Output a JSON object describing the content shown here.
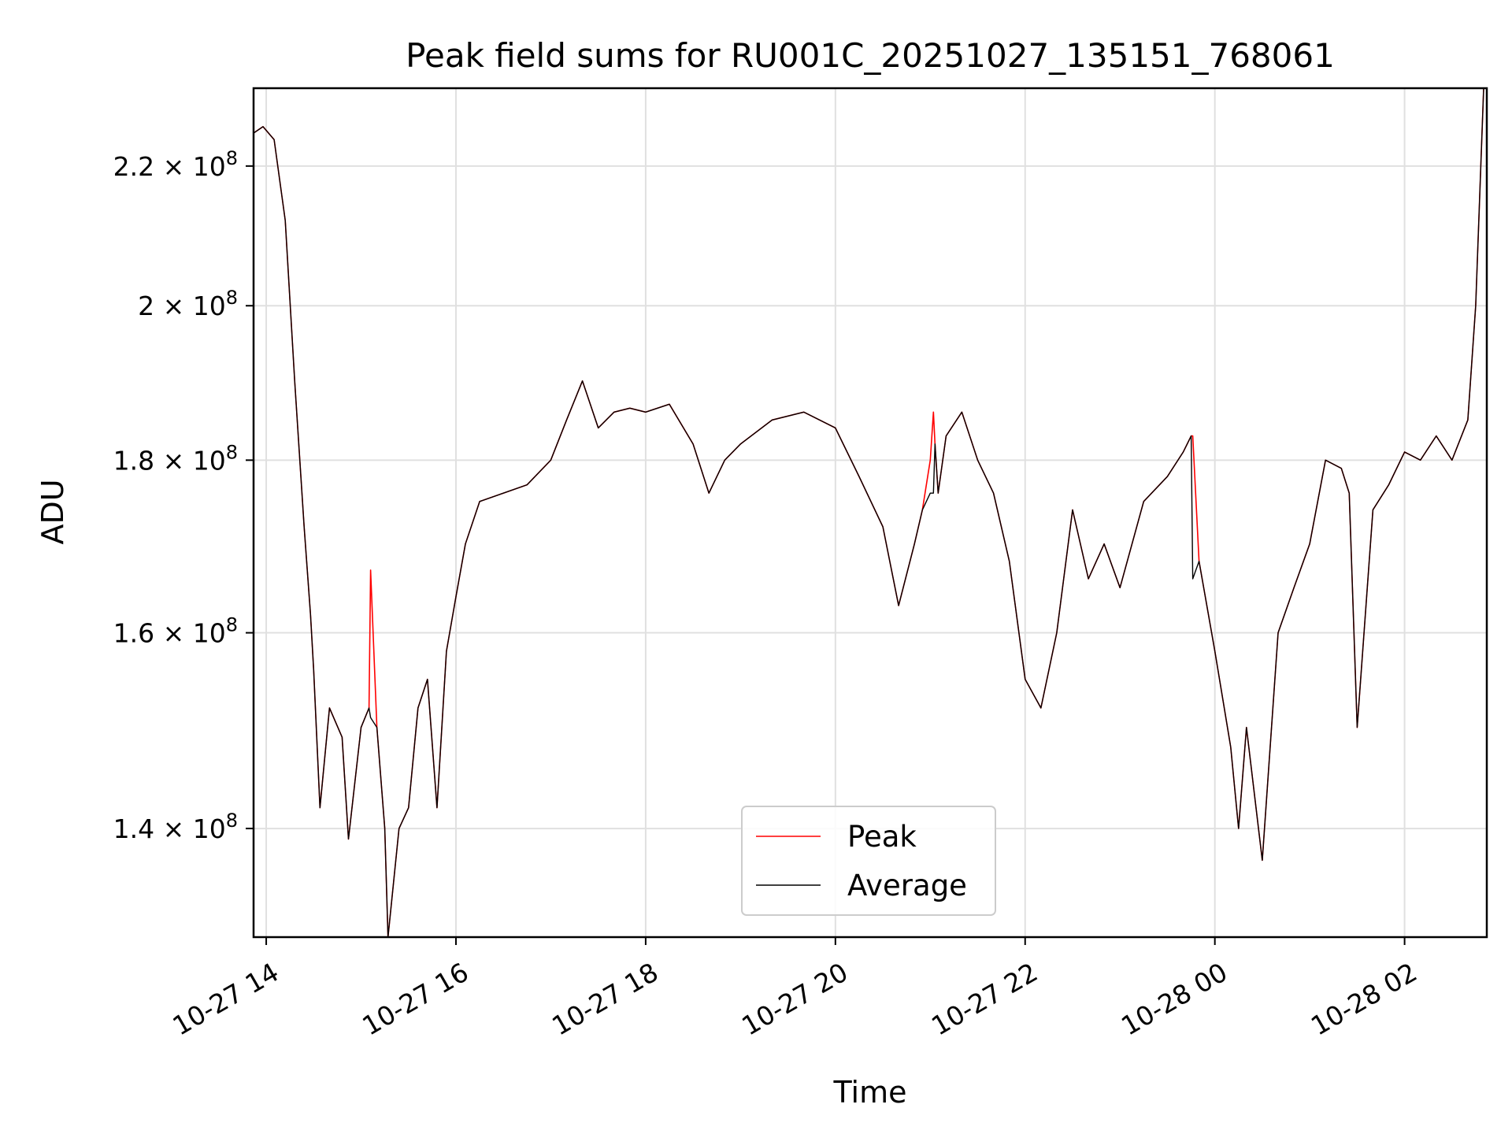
{
  "chart_data": {
    "type": "line",
    "title": "Peak field sums for RU001C_20251027_135151_768061",
    "xlabel": "Time",
    "ylabel": "ADU",
    "yscale": "log",
    "xlim": [
      "2025-10-27 13:52",
      "2025-10-28 02:52"
    ],
    "ylim": [
      130000000,
      232000000
    ],
    "grid": true,
    "legend": "lower center",
    "x_ticks": [
      {
        "t": "2025-10-27 14:00",
        "label": "10-27 14"
      },
      {
        "t": "2025-10-27 16:00",
        "label": "10-27 16"
      },
      {
        "t": "2025-10-27 18:00",
        "label": "10-27 18"
      },
      {
        "t": "2025-10-27 20:00",
        "label": "10-27 20"
      },
      {
        "t": "2025-10-27 22:00",
        "label": "10-27 22"
      },
      {
        "t": "2025-10-28 00:00",
        "label": "10-28 00"
      },
      {
        "t": "2025-10-28 02:00",
        "label": "10-28 02"
      }
    ],
    "y_ticks": [
      {
        "value": 140000000,
        "mant": "1.4",
        "exp": "8"
      },
      {
        "value": 160000000,
        "mant": "1.6",
        "exp": "8"
      },
      {
        "value": 180000000,
        "mant": "1.8",
        "exp": "8"
      },
      {
        "value": 200000000,
        "mant": "2",
        "exp": "8"
      },
      {
        "value": 220000000,
        "mant": "2.2",
        "exp": "8"
      }
    ],
    "colors": {
      "Peak": "#ff0000",
      "Average": "#000000"
    },
    "series": [
      {
        "name": "Peak",
        "x": [
          "2025-10-27 13:52",
          "2025-10-27 13:58",
          "2025-10-27 14:05",
          "2025-10-27 14:12",
          "2025-10-27 14:18",
          "2025-10-27 14:24",
          "2025-10-27 14:28",
          "2025-10-27 14:30",
          "2025-10-27 14:34",
          "2025-10-27 14:40",
          "2025-10-27 14:48",
          "2025-10-27 14:52",
          "2025-10-27 15:00",
          "2025-10-27 15:05",
          "2025-10-27 15:06",
          "2025-10-27 15:10",
          "2025-10-27 15:15",
          "2025-10-27 15:17",
          "2025-10-27 15:24",
          "2025-10-27 15:30",
          "2025-10-27 15:36",
          "2025-10-27 15:42",
          "2025-10-27 15:48",
          "2025-10-27 15:54",
          "2025-10-27 16:00",
          "2025-10-27 16:06",
          "2025-10-27 16:15",
          "2025-10-27 16:30",
          "2025-10-27 16:45",
          "2025-10-27 17:00",
          "2025-10-27 17:10",
          "2025-10-27 17:20",
          "2025-10-27 17:30",
          "2025-10-27 17:40",
          "2025-10-27 17:50",
          "2025-10-27 18:00",
          "2025-10-27 18:15",
          "2025-10-27 18:30",
          "2025-10-27 18:40",
          "2025-10-27 18:50",
          "2025-10-27 19:00",
          "2025-10-27 19:20",
          "2025-10-27 19:40",
          "2025-10-27 20:00",
          "2025-10-27 20:15",
          "2025-10-27 20:30",
          "2025-10-27 20:40",
          "2025-10-27 20:50",
          "2025-10-27 20:55",
          "2025-10-27 21:00",
          "2025-10-27 21:02",
          "2025-10-27 21:03",
          "2025-10-27 21:05",
          "2025-10-27 21:10",
          "2025-10-27 21:20",
          "2025-10-27 21:30",
          "2025-10-27 21:40",
          "2025-10-27 21:50",
          "2025-10-27 22:00",
          "2025-10-27 22:10",
          "2025-10-27 22:20",
          "2025-10-27 22:30",
          "2025-10-27 22:40",
          "2025-10-27 22:50",
          "2025-10-27 23:00",
          "2025-10-27 23:15",
          "2025-10-27 23:30",
          "2025-10-27 23:40",
          "2025-10-27 23:45",
          "2025-10-27 23:46",
          "2025-10-27 23:50",
          "2025-10-28 00:00",
          "2025-10-28 00:10",
          "2025-10-28 00:15",
          "2025-10-28 00:20",
          "2025-10-28 00:30",
          "2025-10-28 00:40",
          "2025-10-28 00:50",
          "2025-10-28 01:00",
          "2025-10-28 01:10",
          "2025-10-28 01:20",
          "2025-10-28 01:25",
          "2025-10-28 01:30",
          "2025-10-28 01:40",
          "2025-10-28 01:50",
          "2025-10-28 02:00",
          "2025-10-28 02:10",
          "2025-10-28 02:20",
          "2025-10-28 02:30",
          "2025-10-28 02:40",
          "2025-10-28 02:45",
          "2025-10-28 02:50"
        ],
        "y": [
          225000000,
          226000000,
          224000000,
          212000000,
          190000000,
          172000000,
          162000000,
          156000000,
          142000000,
          152000000,
          149000000,
          139000000,
          150000000,
          152000000,
          167000000,
          150000000,
          140000000,
          130000000,
          140000000,
          142000000,
          152000000,
          155000000,
          142000000,
          158000000,
          164000000,
          170000000,
          175000000,
          176000000,
          177000000,
          180000000,
          185000000,
          190000000,
          184000000,
          186000000,
          186500000,
          186000000,
          187000000,
          182000000,
          176000000,
          180000000,
          182000000,
          185000000,
          186000000,
          184000000,
          178000000,
          172000000,
          163000000,
          170000000,
          174000000,
          180000000,
          186000000,
          182000000,
          176000000,
          183000000,
          186000000,
          180000000,
          176000000,
          168000000,
          155000000,
          152000000,
          160000000,
          174000000,
          166000000,
          170000000,
          165000000,
          175000000,
          178000000,
          181000000,
          183000000,
          183000000,
          168000000,
          158000000,
          148000000,
          140000000,
          150000000,
          137000000,
          160000000,
          165000000,
          170000000,
          180000000,
          179000000,
          176000000,
          150000000,
          174000000,
          177000000,
          181000000,
          180000000,
          183000000,
          180000000,
          185000000,
          200000000,
          232000000
        ]
      },
      {
        "name": "Average",
        "x": [
          "2025-10-27 13:52",
          "2025-10-27 13:58",
          "2025-10-27 14:05",
          "2025-10-27 14:12",
          "2025-10-27 14:18",
          "2025-10-27 14:24",
          "2025-10-27 14:28",
          "2025-10-27 14:30",
          "2025-10-27 14:34",
          "2025-10-27 14:40",
          "2025-10-27 14:48",
          "2025-10-27 14:52",
          "2025-10-27 15:00",
          "2025-10-27 15:05",
          "2025-10-27 15:06",
          "2025-10-27 15:10",
          "2025-10-27 15:15",
          "2025-10-27 15:17",
          "2025-10-27 15:24",
          "2025-10-27 15:30",
          "2025-10-27 15:36",
          "2025-10-27 15:42",
          "2025-10-27 15:48",
          "2025-10-27 15:54",
          "2025-10-27 16:00",
          "2025-10-27 16:06",
          "2025-10-27 16:15",
          "2025-10-27 16:30",
          "2025-10-27 16:45",
          "2025-10-27 17:00",
          "2025-10-27 17:10",
          "2025-10-27 17:20",
          "2025-10-27 17:30",
          "2025-10-27 17:40",
          "2025-10-27 17:50",
          "2025-10-27 18:00",
          "2025-10-27 18:15",
          "2025-10-27 18:30",
          "2025-10-27 18:40",
          "2025-10-27 18:50",
          "2025-10-27 19:00",
          "2025-10-27 19:20",
          "2025-10-27 19:40",
          "2025-10-27 20:00",
          "2025-10-27 20:15",
          "2025-10-27 20:30",
          "2025-10-27 20:40",
          "2025-10-27 20:50",
          "2025-10-27 20:55",
          "2025-10-27 21:00",
          "2025-10-27 21:02",
          "2025-10-27 21:03",
          "2025-10-27 21:05",
          "2025-10-27 21:10",
          "2025-10-27 21:20",
          "2025-10-27 21:30",
          "2025-10-27 21:40",
          "2025-10-27 21:50",
          "2025-10-27 22:00",
          "2025-10-27 22:10",
          "2025-10-27 22:20",
          "2025-10-27 22:30",
          "2025-10-27 22:40",
          "2025-10-27 22:50",
          "2025-10-27 23:00",
          "2025-10-27 23:15",
          "2025-10-27 23:30",
          "2025-10-27 23:40",
          "2025-10-27 23:45",
          "2025-10-27 23:46",
          "2025-10-27 23:50",
          "2025-10-28 00:00",
          "2025-10-28 00:10",
          "2025-10-28 00:15",
          "2025-10-28 00:20",
          "2025-10-28 00:30",
          "2025-10-28 00:40",
          "2025-10-28 00:50",
          "2025-10-28 01:00",
          "2025-10-28 01:10",
          "2025-10-28 01:20",
          "2025-10-28 01:25",
          "2025-10-28 01:30",
          "2025-10-28 01:40",
          "2025-10-28 01:50",
          "2025-10-28 02:00",
          "2025-10-28 02:10",
          "2025-10-28 02:20",
          "2025-10-28 02:30",
          "2025-10-28 02:40",
          "2025-10-28 02:45",
          "2025-10-28 02:50"
        ],
        "y": [
          225000000,
          226000000,
          224000000,
          212000000,
          190000000,
          172000000,
          162000000,
          156000000,
          142000000,
          152000000,
          149000000,
          139000000,
          150000000,
          152000000,
          151000000,
          150000000,
          140000000,
          130000000,
          140000000,
          142000000,
          152000000,
          155000000,
          142000000,
          158000000,
          164000000,
          170000000,
          175000000,
          176000000,
          177000000,
          180000000,
          185000000,
          190000000,
          184000000,
          186000000,
          186500000,
          186000000,
          187000000,
          182000000,
          176000000,
          180000000,
          182000000,
          185000000,
          186000000,
          184000000,
          178000000,
          172000000,
          163000000,
          170000000,
          174000000,
          176000000,
          176000000,
          182000000,
          176000000,
          183000000,
          186000000,
          180000000,
          176000000,
          168000000,
          155000000,
          152000000,
          160000000,
          174000000,
          166000000,
          170000000,
          165000000,
          175000000,
          178000000,
          181000000,
          183000000,
          166000000,
          168000000,
          158000000,
          148000000,
          140000000,
          150000000,
          137000000,
          160000000,
          165000000,
          170000000,
          180000000,
          179000000,
          176000000,
          150000000,
          174000000,
          177000000,
          181000000,
          180000000,
          183000000,
          180000000,
          185000000,
          200000000,
          232000000
        ]
      }
    ]
  }
}
